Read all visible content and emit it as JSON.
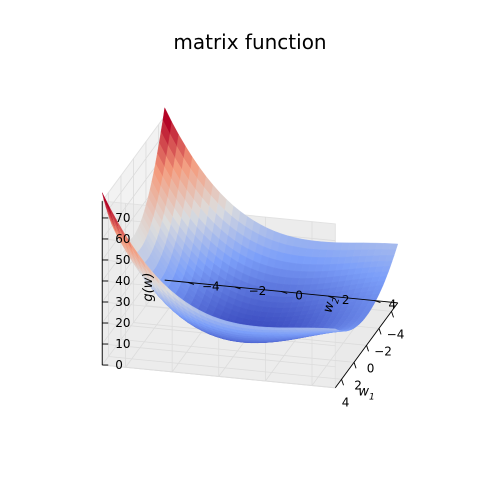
{
  "title": "matrix function",
  "chart_data": {
    "type": "surface3d",
    "title": "matrix function",
    "function_shape": "quadratic bowl (convex paraboloid)",
    "colormap": "coolwarm",
    "x": {
      "label": "w_1",
      "label_base": "w",
      "label_sub": "1",
      "range": [
        -5,
        5
      ],
      "ticks": [
        4,
        2,
        0,
        -2,
        -4
      ],
      "tick_labels": [
        "4",
        "2",
        "0",
        "−2",
        "−4"
      ]
    },
    "y": {
      "label": "w_2",
      "label_base": "w",
      "label_sub": "2",
      "range": [
        -5,
        5
      ],
      "ticks": [
        -4,
        -2,
        0,
        2,
        4
      ],
      "tick_labels": [
        "−4",
        "−2",
        "0",
        "2",
        "4"
      ]
    },
    "z": {
      "label": "g(w)",
      "range": [
        0,
        78
      ],
      "ticks": [
        0,
        10,
        20,
        30,
        40,
        50,
        60,
        70
      ],
      "tick_labels": [
        "0",
        "10",
        "20",
        "30",
        "40",
        "50",
        "60",
        "70"
      ]
    },
    "grid": true,
    "corner_values": [
      {
        "w1": 5,
        "w2": -5,
        "g": 55
      },
      {
        "w1": -5,
        "w2": -5,
        "g": 55
      },
      {
        "w1": 5,
        "w2": 5,
        "g": 1
      },
      {
        "w1": -5,
        "w2": 5,
        "g": 1
      }
    ]
  }
}
